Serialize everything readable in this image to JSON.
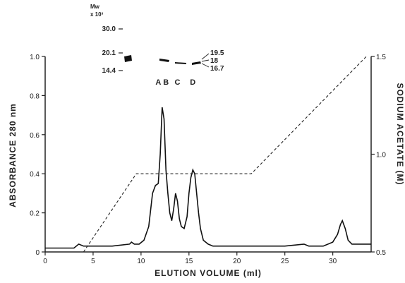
{
  "chart_data": {
    "type": "line",
    "title": "",
    "xlabel": "ELUTION VOLUME (ml)",
    "ylabel_left": "ABSORBANCE 280 nm",
    "ylabel_right": "SODIUM ACETATE (M)",
    "xlim": [
      0,
      34
    ],
    "ylim_left": [
      0,
      1.0
    ],
    "ylim_right": [
      0.5,
      1.5
    ],
    "x_ticks": [
      "0",
      "5",
      "10",
      "15",
      "20",
      "25",
      "30"
    ],
    "y_left_ticks": [
      "0",
      "0.2",
      "0.4",
      "0.6",
      "0.8",
      "1.0"
    ],
    "y_right_ticks": [
      "0.5",
      "1.0",
      "1.5"
    ],
    "grid": false,
    "series": [
      {
        "axis": "left",
        "style": "solid",
        "x": [
          0,
          3,
          3.5,
          4,
          5,
          7,
          8.8,
          9,
          9.3,
          9.8,
          10.3,
          10.8,
          11.2,
          11.5,
          11.8,
          12.0,
          12.2,
          12.4,
          12.6,
          12.8,
          13.0,
          13.2,
          13.4,
          13.6,
          13.8,
          14.0,
          14.2,
          14.5,
          14.8,
          15.0,
          15.2,
          15.4,
          15.6,
          15.8,
          16.0,
          16.2,
          16.5,
          17,
          17.5,
          18,
          20,
          23,
          25,
          27,
          27.5,
          28,
          29,
          30,
          30.5,
          30.8,
          31,
          31.3,
          31.6,
          32,
          33,
          34
        ],
        "y": [
          0.02,
          0.02,
          0.04,
          0.03,
          0.03,
          0.03,
          0.04,
          0.05,
          0.04,
          0.04,
          0.06,
          0.13,
          0.3,
          0.34,
          0.35,
          0.5,
          0.74,
          0.68,
          0.42,
          0.3,
          0.2,
          0.16,
          0.22,
          0.3,
          0.26,
          0.17,
          0.13,
          0.12,
          0.18,
          0.3,
          0.38,
          0.42,
          0.4,
          0.3,
          0.2,
          0.12,
          0.06,
          0.04,
          0.03,
          0.03,
          0.03,
          0.03,
          0.03,
          0.04,
          0.03,
          0.03,
          0.03,
          0.05,
          0.09,
          0.14,
          0.16,
          0.12,
          0.06,
          0.04,
          0.04,
          0.04
        ]
      },
      {
        "axis": "right",
        "style": "dashed",
        "x": [
          4,
          9.5,
          21.5,
          33.5
        ],
        "y": [
          0.5,
          0.9,
          0.9,
          1.5
        ]
      }
    ],
    "peak_labels": [
      {
        "label": "A",
        "x": 11.8
      },
      {
        "label": "B",
        "x": 12.6
      },
      {
        "label": "C",
        "x": 13.8
      },
      {
        "label": "D",
        "x": 15.4
      }
    ],
    "mw_inset": {
      "title_line1": "Mw",
      "title_line2": "x 10³",
      "standards": [
        "30.0",
        "20.1",
        "14.4"
      ],
      "band_labels": [
        "19.5",
        "18",
        "16.7"
      ]
    }
  }
}
